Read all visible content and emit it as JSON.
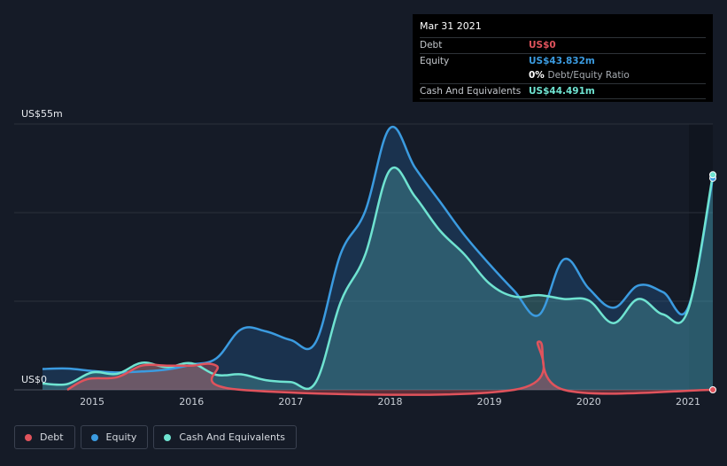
{
  "tooltip": {
    "date": "Mar 31 2021",
    "rows": [
      {
        "label": "Debt",
        "value": "US$0",
        "color": "#e0535c"
      },
      {
        "label": "Equity",
        "value": "US$43.832m",
        "color": "#3b9be0"
      },
      {
        "ratio_pct": "0%",
        "ratio_label": "Debt/Equity Ratio"
      },
      {
        "label": "Cash And Equivalents",
        "value": "US$44.491m",
        "color": "#6fe3d1"
      }
    ]
  },
  "legend": [
    {
      "label": "Debt",
      "color": "#e0535c"
    },
    {
      "label": "Equity",
      "color": "#3b9be0"
    },
    {
      "label": "Cash And Equivalents",
      "color": "#6fe3d1"
    }
  ],
  "chart_data": {
    "type": "area",
    "ylabel_top": "US$55m",
    "ylabel_bottom": "US$0",
    "ylim": [
      0,
      55
    ],
    "xlim": [
      2014.5,
      2021.25
    ],
    "x_ticks": [
      "2015",
      "2016",
      "2017",
      "2018",
      "2019",
      "2020",
      "2021"
    ],
    "series": [
      {
        "name": "Debt",
        "color": "#e0535c",
        "points": [
          [
            2014.75,
            0
          ],
          [
            2014.95,
            2.2
          ],
          [
            2015.25,
            2.6
          ],
          [
            2015.5,
            5
          ],
          [
            2015.75,
            5
          ],
          [
            2016.0,
            5
          ],
          [
            2016.25,
            5
          ],
          [
            2016.5,
            0
          ],
          [
            2019.25,
            0
          ],
          [
            2019.5,
            10
          ],
          [
            2019.75,
            0
          ],
          [
            2021.25,
            0
          ]
        ]
      },
      {
        "name": "Equity",
        "color": "#3b9be0",
        "points": [
          [
            2014.5,
            4.3
          ],
          [
            2014.75,
            4.4
          ],
          [
            2015.0,
            3.9
          ],
          [
            2015.25,
            3.6
          ],
          [
            2015.5,
            3.8
          ],
          [
            2015.75,
            4.2
          ],
          [
            2016.0,
            5.2
          ],
          [
            2016.25,
            6.5
          ],
          [
            2016.5,
            12.5
          ],
          [
            2016.75,
            12.1
          ],
          [
            2017.0,
            10.3
          ],
          [
            2017.25,
            9.8
          ],
          [
            2017.5,
            28
          ],
          [
            2017.75,
            37
          ],
          [
            2018.0,
            54.2
          ],
          [
            2018.25,
            46
          ],
          [
            2018.5,
            39
          ],
          [
            2018.75,
            32
          ],
          [
            2019.0,
            26
          ],
          [
            2019.25,
            20.5
          ],
          [
            2019.5,
            15.5
          ],
          [
            2019.75,
            27
          ],
          [
            2020.0,
            21
          ],
          [
            2020.25,
            17
          ],
          [
            2020.5,
            21.6
          ],
          [
            2020.75,
            20.2
          ],
          [
            2021.0,
            17
          ],
          [
            2021.25,
            43.8
          ]
        ]
      },
      {
        "name": "Cash And Equivalents",
        "color": "#6fe3d1",
        "points": [
          [
            2014.5,
            1.3
          ],
          [
            2014.75,
            1.2
          ],
          [
            2015.0,
            3.6
          ],
          [
            2015.25,
            3.3
          ],
          [
            2015.5,
            5.6
          ],
          [
            2015.75,
            4.7
          ],
          [
            2016.0,
            5.5
          ],
          [
            2016.25,
            3.1
          ],
          [
            2016.5,
            3.2
          ],
          [
            2016.75,
            2.0
          ],
          [
            2017.0,
            1.6
          ],
          [
            2017.25,
            1.5
          ],
          [
            2017.5,
            18
          ],
          [
            2017.75,
            28
          ],
          [
            2018.0,
            45.5
          ],
          [
            2018.25,
            40
          ],
          [
            2018.5,
            33
          ],
          [
            2018.75,
            28
          ],
          [
            2019.0,
            22
          ],
          [
            2019.25,
            19.3
          ],
          [
            2019.5,
            19.6
          ],
          [
            2019.75,
            18.8
          ],
          [
            2020.0,
            18.5
          ],
          [
            2020.25,
            13.8
          ],
          [
            2020.5,
            18.8
          ],
          [
            2020.75,
            15.6
          ],
          [
            2021.0,
            16.5
          ],
          [
            2021.25,
            44.5
          ]
        ]
      }
    ]
  }
}
